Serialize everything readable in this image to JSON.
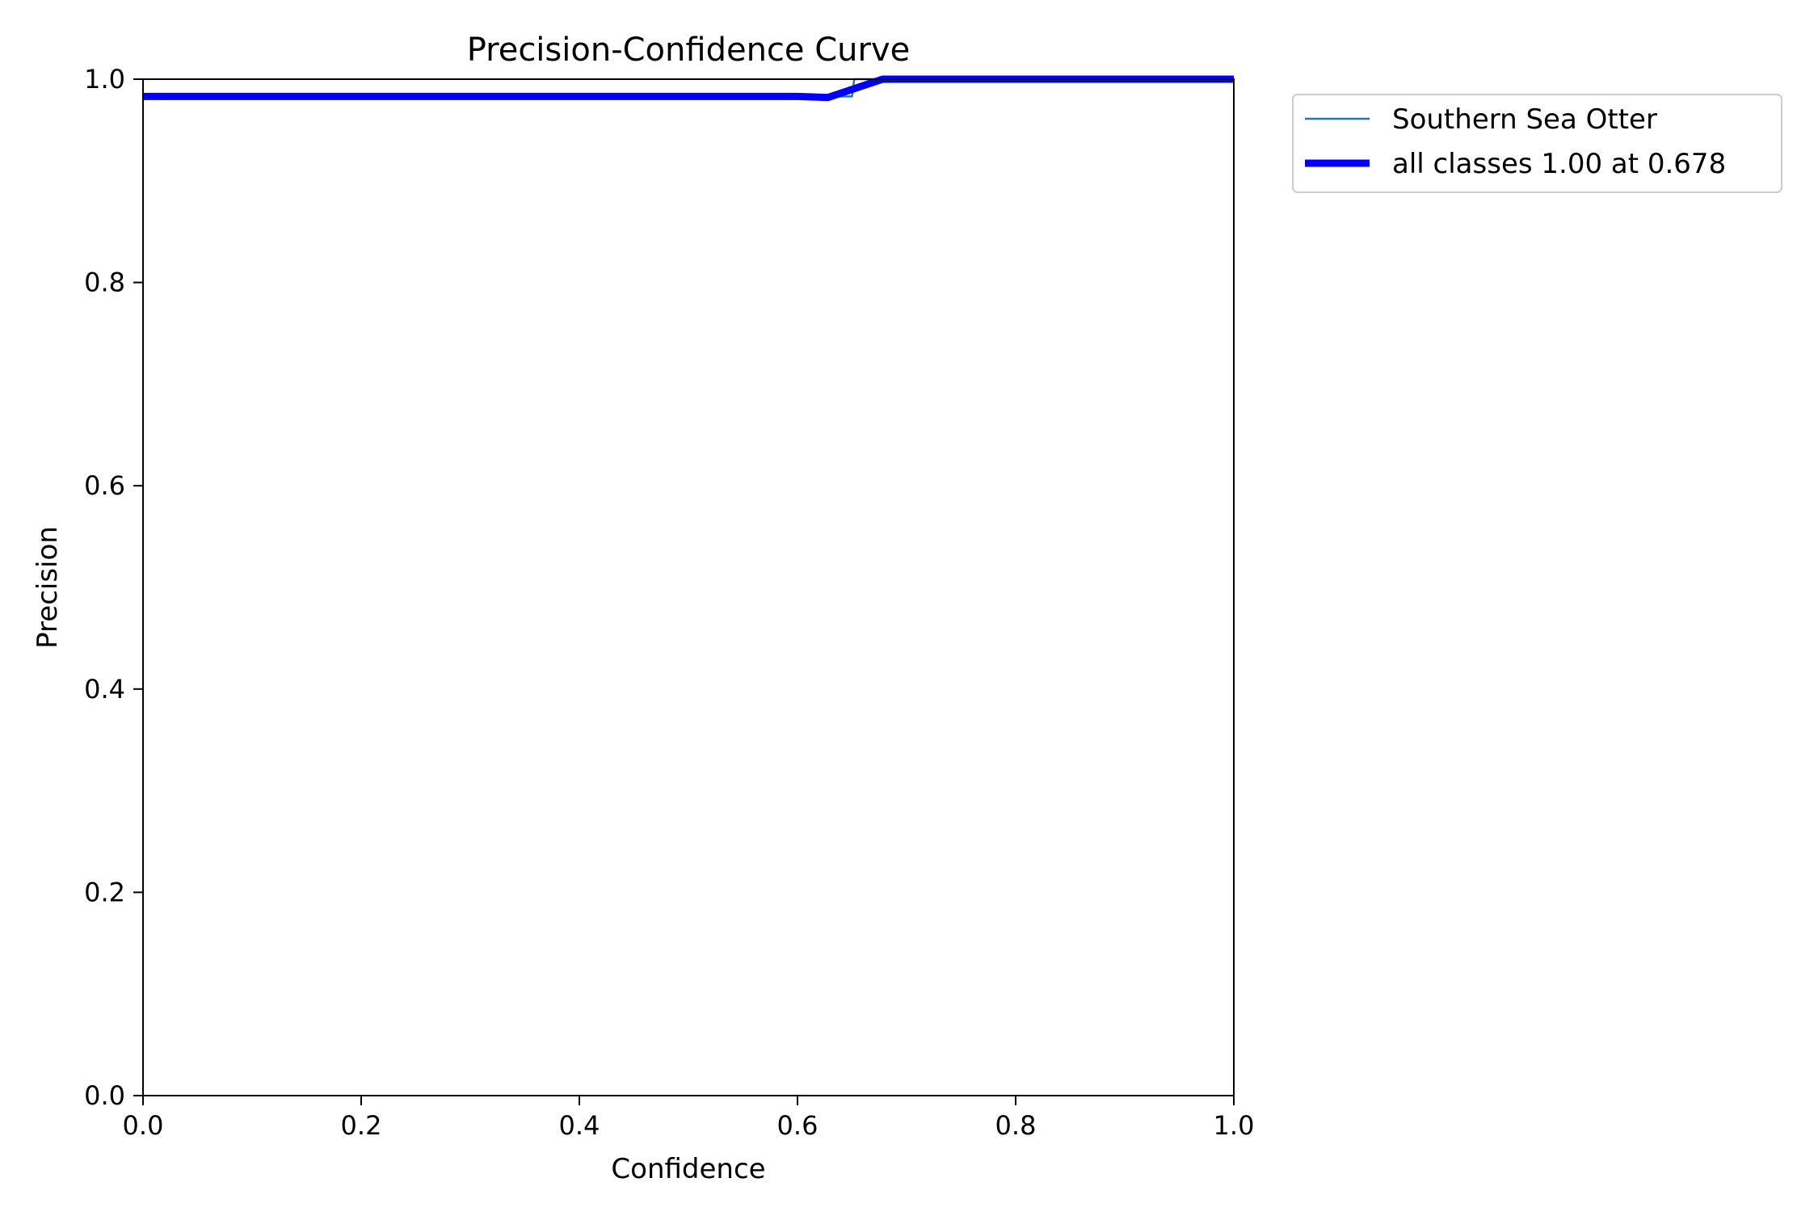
{
  "chart_data": {
    "type": "line",
    "title": "Precision-Confidence Curve",
    "xlabel": "Confidence",
    "ylabel": "Precision",
    "xlim": [
      0,
      1
    ],
    "ylim": [
      0,
      1
    ],
    "x_ticks": [
      "0.0",
      "0.2",
      "0.4",
      "0.6",
      "0.8",
      "1.0"
    ],
    "y_ticks": [
      "0.0",
      "0.2",
      "0.4",
      "0.6",
      "0.8",
      "1.0"
    ],
    "grid": false,
    "legend_position": "outside-top-right",
    "series": [
      {
        "name": "Southern Sea Otter",
        "color": "#1f77b4",
        "style": "thin",
        "x": [
          0.0,
          0.6,
          0.625,
          0.65,
          0.652,
          0.66,
          0.7,
          1.0
        ],
        "y": [
          0.983,
          0.983,
          0.983,
          0.983,
          1.0,
          1.0,
          1.0,
          1.0
        ]
      },
      {
        "name": "all classes 1.00 at 0.678",
        "color": "#0000ff",
        "style": "thick",
        "x": [
          0.0,
          0.6,
          0.628,
          0.678,
          0.7,
          1.0
        ],
        "y": [
          0.983,
          0.983,
          0.982,
          1.0,
          1.0,
          1.0
        ]
      }
    ]
  }
}
